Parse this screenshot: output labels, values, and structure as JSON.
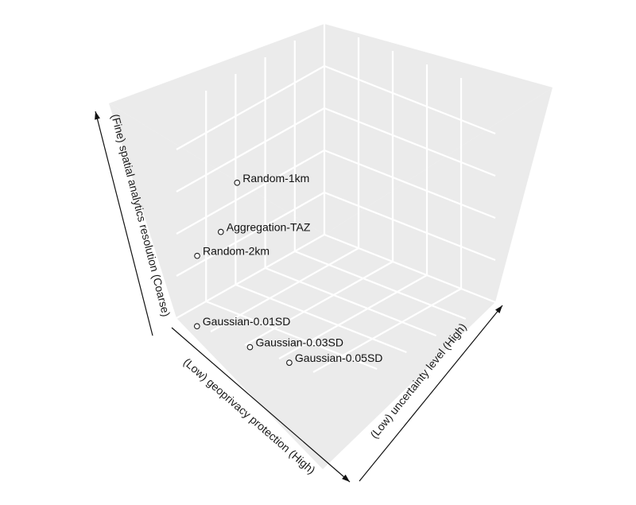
{
  "chart_data": {
    "type": "scatter",
    "projection": "3d",
    "axes": {
      "x": {
        "label": "(Low) geoprivacy protection (High)"
      },
      "y": {
        "label": "(Low) uncertainty level (High)"
      },
      "z": {
        "label": "(Fine) spatial analytics resolution (Coarse)"
      }
    },
    "grid": true,
    "colors": {
      "panel": "#ebebeb",
      "grid": "#ffffff",
      "axis": "#111111",
      "point_fill": "#ffffff",
      "point_stroke": "#1a1a1a"
    },
    "points": [
      {
        "label": "Random-1km",
        "x": 0.59,
        "y": 0.0,
        "z": 0.48
      },
      {
        "label": "Aggregation-TAZ",
        "x": 0.7,
        "y": 0.0,
        "z": 0.29
      },
      {
        "label": "Random-2km",
        "x": 0.86,
        "y": 0.0,
        "z": 0.24
      },
      {
        "label": "Gaussian-0.01SD",
        "x": 1.0,
        "y": 0.12,
        "z": 0.0
      },
      {
        "label": "Gaussian-0.03SD",
        "x": 1.0,
        "y": 0.43,
        "z": 0.0
      },
      {
        "label": "Gaussian-0.05SD",
        "x": 1.0,
        "y": 0.66,
        "z": 0.0
      }
    ]
  }
}
